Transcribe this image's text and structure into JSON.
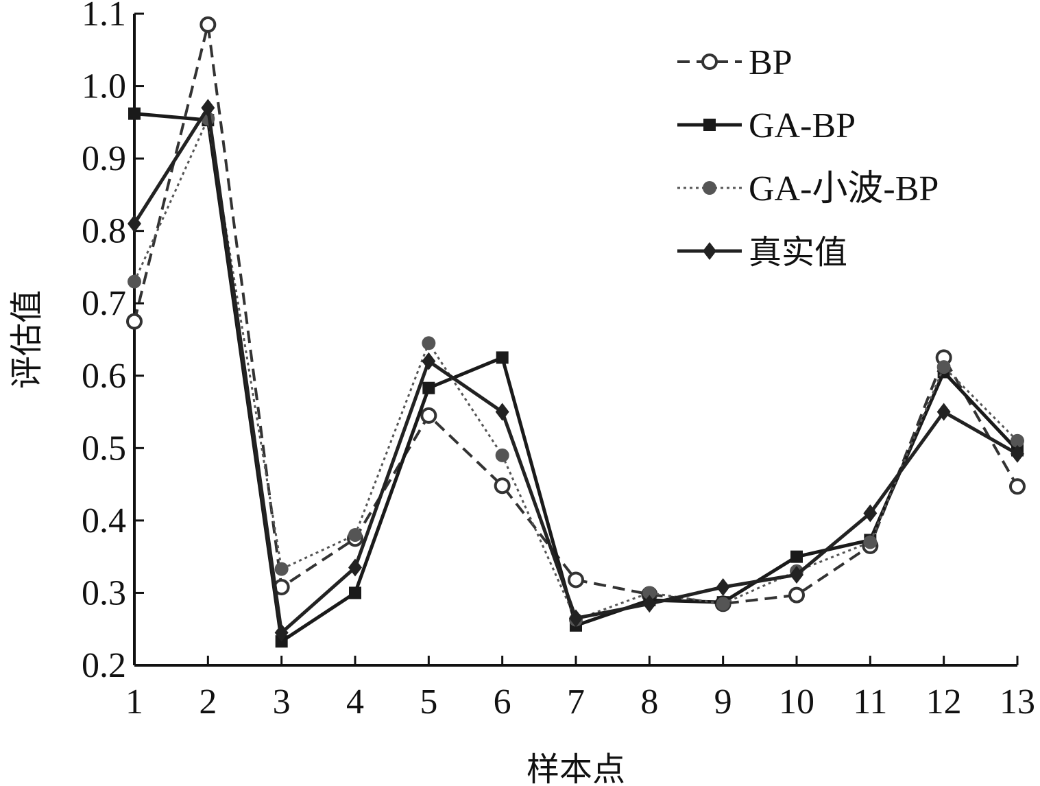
{
  "chart_data": {
    "type": "line",
    "title": "",
    "xlabel": "样本点",
    "ylabel": "评估值",
    "x": [
      1,
      2,
      3,
      4,
      5,
      6,
      7,
      8,
      9,
      10,
      11,
      12,
      13
    ],
    "ylim": [
      0.2,
      1.1
    ],
    "yticks": [
      "0.2",
      "0.3",
      "0.4",
      "0.5",
      "0.6",
      "0.7",
      "0.8",
      "0.9",
      "1.0",
      "1.1"
    ],
    "grid": false,
    "legend_position": "top-right",
    "series": [
      {
        "name": "BP",
        "line": "dashed",
        "marker": "open-circle",
        "color": "#333333",
        "values": [
          0.675,
          1.085,
          0.308,
          0.375,
          0.545,
          0.448,
          0.318,
          0.298,
          0.285,
          0.297,
          0.365,
          0.625,
          0.447
        ]
      },
      {
        "name": "GA-BP",
        "line": "solid",
        "marker": "filled-square",
        "color": "#1a1a1a",
        "values": [
          0.962,
          0.953,
          0.233,
          0.3,
          0.583,
          0.625,
          0.255,
          0.29,
          0.287,
          0.35,
          0.373,
          0.605,
          0.497
        ]
      },
      {
        "name": "GA-小波-BP",
        "line": "dotted",
        "marker": "filled-circle",
        "color": "#555555",
        "values": [
          0.73,
          0.955,
          0.333,
          0.38,
          0.645,
          0.49,
          0.263,
          0.3,
          0.285,
          0.33,
          0.37,
          0.612,
          0.51
        ]
      },
      {
        "name": "真实值",
        "line": "solid",
        "marker": "filled-diamond",
        "color": "#222222",
        "values": [
          0.81,
          0.97,
          0.245,
          0.335,
          0.62,
          0.55,
          0.265,
          0.285,
          0.308,
          0.325,
          0.41,
          0.55,
          0.492
        ]
      }
    ]
  }
}
